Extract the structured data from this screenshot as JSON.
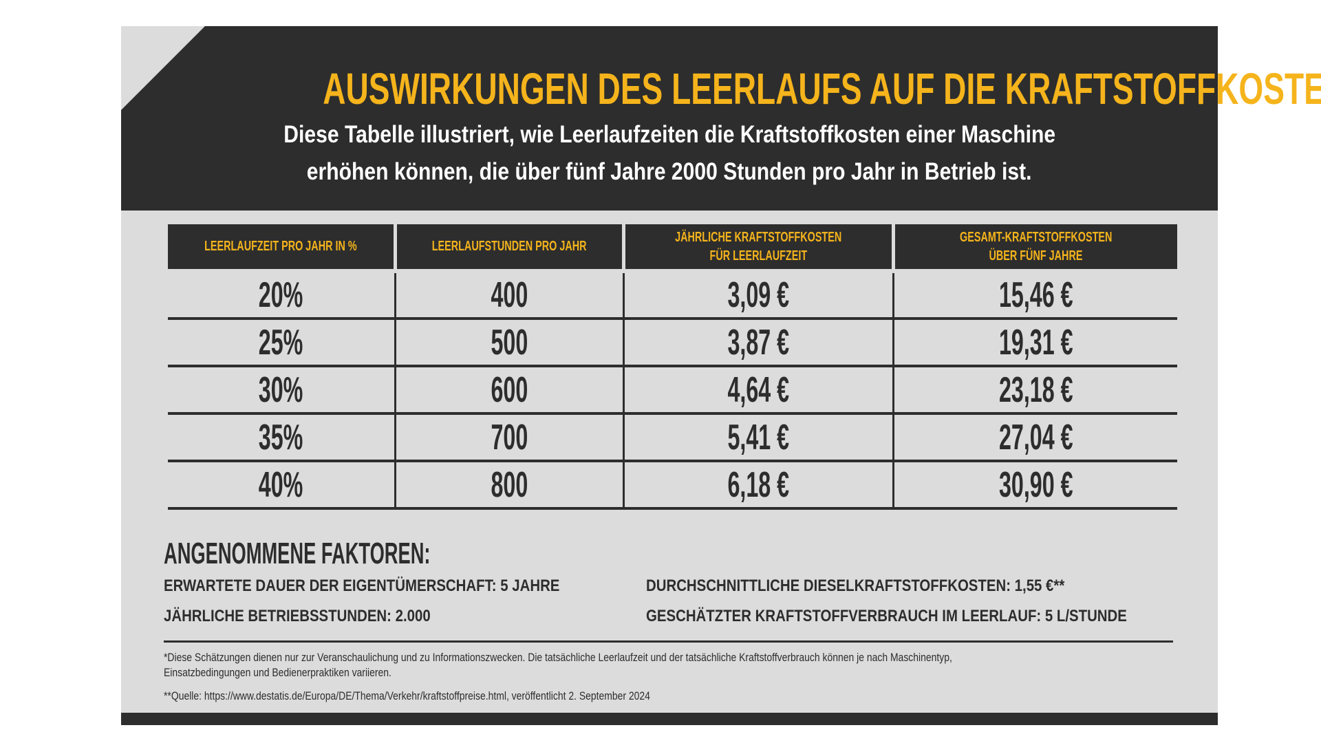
{
  "title": "AUSWIRKUNGEN DES LEERLAUFS AUF DIE KRAFTSTOFFKOSTEN*",
  "subtitle": [
    "Diese Tabelle illustriert, wie Leerlaufzeiten die Kraftstoffkosten einer Maschine",
    "erhöhen können, die über fünf Jahre 2000 Stunden pro Jahr in Betrieb ist."
  ],
  "table": {
    "headers": [
      [
        "LEERLAUFZEIT PRO JAHR IN %"
      ],
      [
        "LEERLAUFSTUNDEN PRO JAHR"
      ],
      [
        "JÄHRLICHE KRAFTSTOFFKOSTEN",
        "FÜR LEERLAUFZEIT"
      ],
      [
        "GESAMT-KRAFTSTOFFKOSTEN",
        "ÜBER FÜNF JAHRE"
      ]
    ],
    "rows": [
      [
        "20%",
        "400",
        "3,09 €",
        "15,46 €"
      ],
      [
        "25%",
        "500",
        "3,87 €",
        "19,31 €"
      ],
      [
        "30%",
        "600",
        "4,64 €",
        "23,18 €"
      ],
      [
        "35%",
        "700",
        "5,41 €",
        "27,04 €"
      ],
      [
        "40%",
        "800",
        "6,18 €",
        "30,90 €"
      ]
    ]
  },
  "factors": {
    "title": "ANGENOMMENE FAKTOREN:",
    "items": [
      "ERWARTETE DAUER DER EIGENTÜMERSCHAFT: 5 JAHRE",
      "JÄHRLICHE BETRIEBSSTUNDEN: 2.000",
      "DURCHSCHNITTLICHE DIESELKRAFTSTOFFKOSTEN: 1,55 €**",
      "GESCHÄTZTER KRAFTSTOFFVERBRAUCH IM LEERLAUF: 5 L/STUNDE"
    ]
  },
  "footnotes": [
    "*Diese Schätzungen dienen nur zur Veranschaulichung und zu Informationszwecken. Die tatsächliche Leerlaufzeit und der tatsächliche Kraftstoffverbrauch können je nach Maschinentyp,",
    " Einsatzbedingungen und Bedienerpraktiken variieren.",
    "**Quelle: https://www.destatis.de/Europa/DE/Thema/Verkehr/kraftstoffpreise.html, veröffentlicht 2. September 2024"
  ],
  "colors": {
    "dark": "#2d2d2d",
    "accent": "#f5b41c",
    "background": "#dcdcdd"
  }
}
